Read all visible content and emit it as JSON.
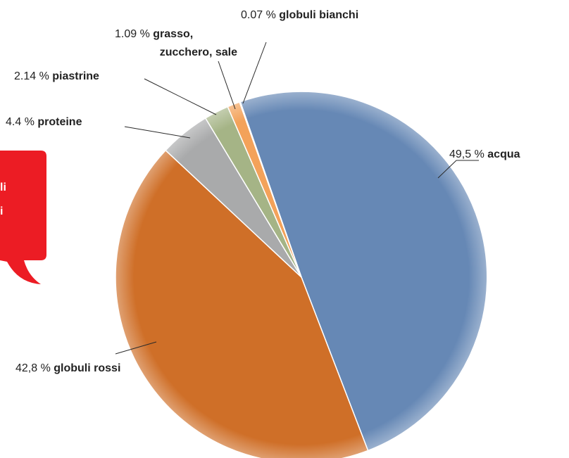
{
  "bubble": {
    "line1": "li",
    "line2": "i",
    "color": "#ec1c24"
  },
  "chart_data": {
    "type": "pie",
    "slices": [
      {
        "value": 49.5,
        "percent_text": "49,5 %",
        "label": "acqua",
        "color": "#6688b5"
      },
      {
        "value": 42.8,
        "percent_text": "42,8 %",
        "label": "globuli rossi",
        "color": "#cf6f28"
      },
      {
        "value": 4.4,
        "percent_text": "4.4 %",
        "label": "proteine",
        "color": "#a9aaab"
      },
      {
        "value": 2.14,
        "percent_text": "2.14 %",
        "label": "piastrine",
        "color": "#a5b486"
      },
      {
        "value": 1.09,
        "percent_text": "1.09 %",
        "label": "grasso,\nzucchero, sale",
        "color": "#f3a25a"
      },
      {
        "value": 0.07,
        "percent_text": "0.07 %",
        "label": "globuli bianchi",
        "color": "#e9e9e9"
      }
    ]
  }
}
